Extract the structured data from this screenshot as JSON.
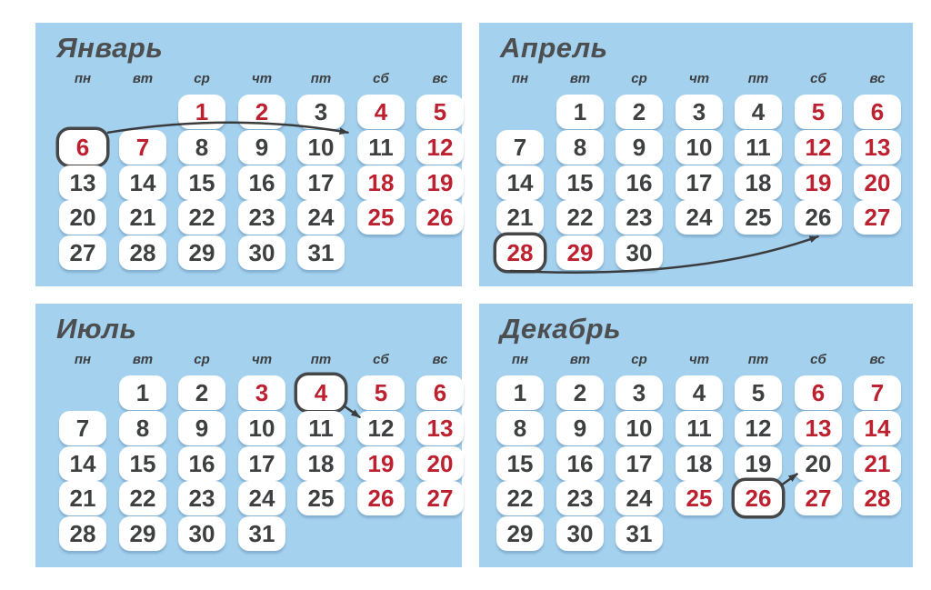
{
  "page": {
    "background": "#ffffff",
    "language": "ru"
  },
  "calendar": {
    "weekday_headers": [
      "пн",
      "вт",
      "ср",
      "чт",
      "пт",
      "сб",
      "вс"
    ],
    "colors": {
      "panel_background": "#a4d1ee",
      "day_cell_background": "#ffffff",
      "workday_text": "#3e3f41",
      "dayoff_text": "#bd2130",
      "month_title_text": "#4c4e50",
      "weekday_header_text": "#3d4043",
      "highlight_ring": "#454648",
      "transfer_arrow": "#3a3b3d",
      "cell_shadow": "rgba(96,138,172,0.45)"
    },
    "months": [
      {
        "id": "january",
        "name": "Январь",
        "first_day_column": 2,
        "num_days": 31,
        "dayoff_days": [
          1,
          2,
          4,
          5,
          6,
          7,
          12,
          18,
          19,
          25,
          26
        ],
        "circled_days": [
          6
        ],
        "transfer_arrow": {
          "from_day": 6,
          "to_day": 11
        }
      },
      {
        "id": "april",
        "name": "Апрель",
        "first_day_column": 1,
        "num_days": 30,
        "dayoff_days": [
          5,
          6,
          12,
          13,
          19,
          20,
          27,
          28,
          29
        ],
        "circled_days": [
          28
        ],
        "transfer_arrow": {
          "from_day": 28,
          "to_day": 26
        }
      },
      {
        "id": "july",
        "name": "Июль",
        "first_day_column": 1,
        "num_days": 31,
        "dayoff_days": [
          3,
          4,
          5,
          6,
          13,
          19,
          20,
          26,
          27
        ],
        "circled_days": [
          4
        ],
        "transfer_arrow": {
          "from_day": 4,
          "to_day": 12
        }
      },
      {
        "id": "december",
        "name": "Декабрь",
        "first_day_column": 0,
        "num_days": 31,
        "dayoff_days": [
          6,
          7,
          13,
          14,
          21,
          25,
          26,
          27,
          28
        ],
        "circled_days": [
          26
        ],
        "transfer_arrow": {
          "from_day": 26,
          "to_day": 20
        }
      }
    ]
  }
}
